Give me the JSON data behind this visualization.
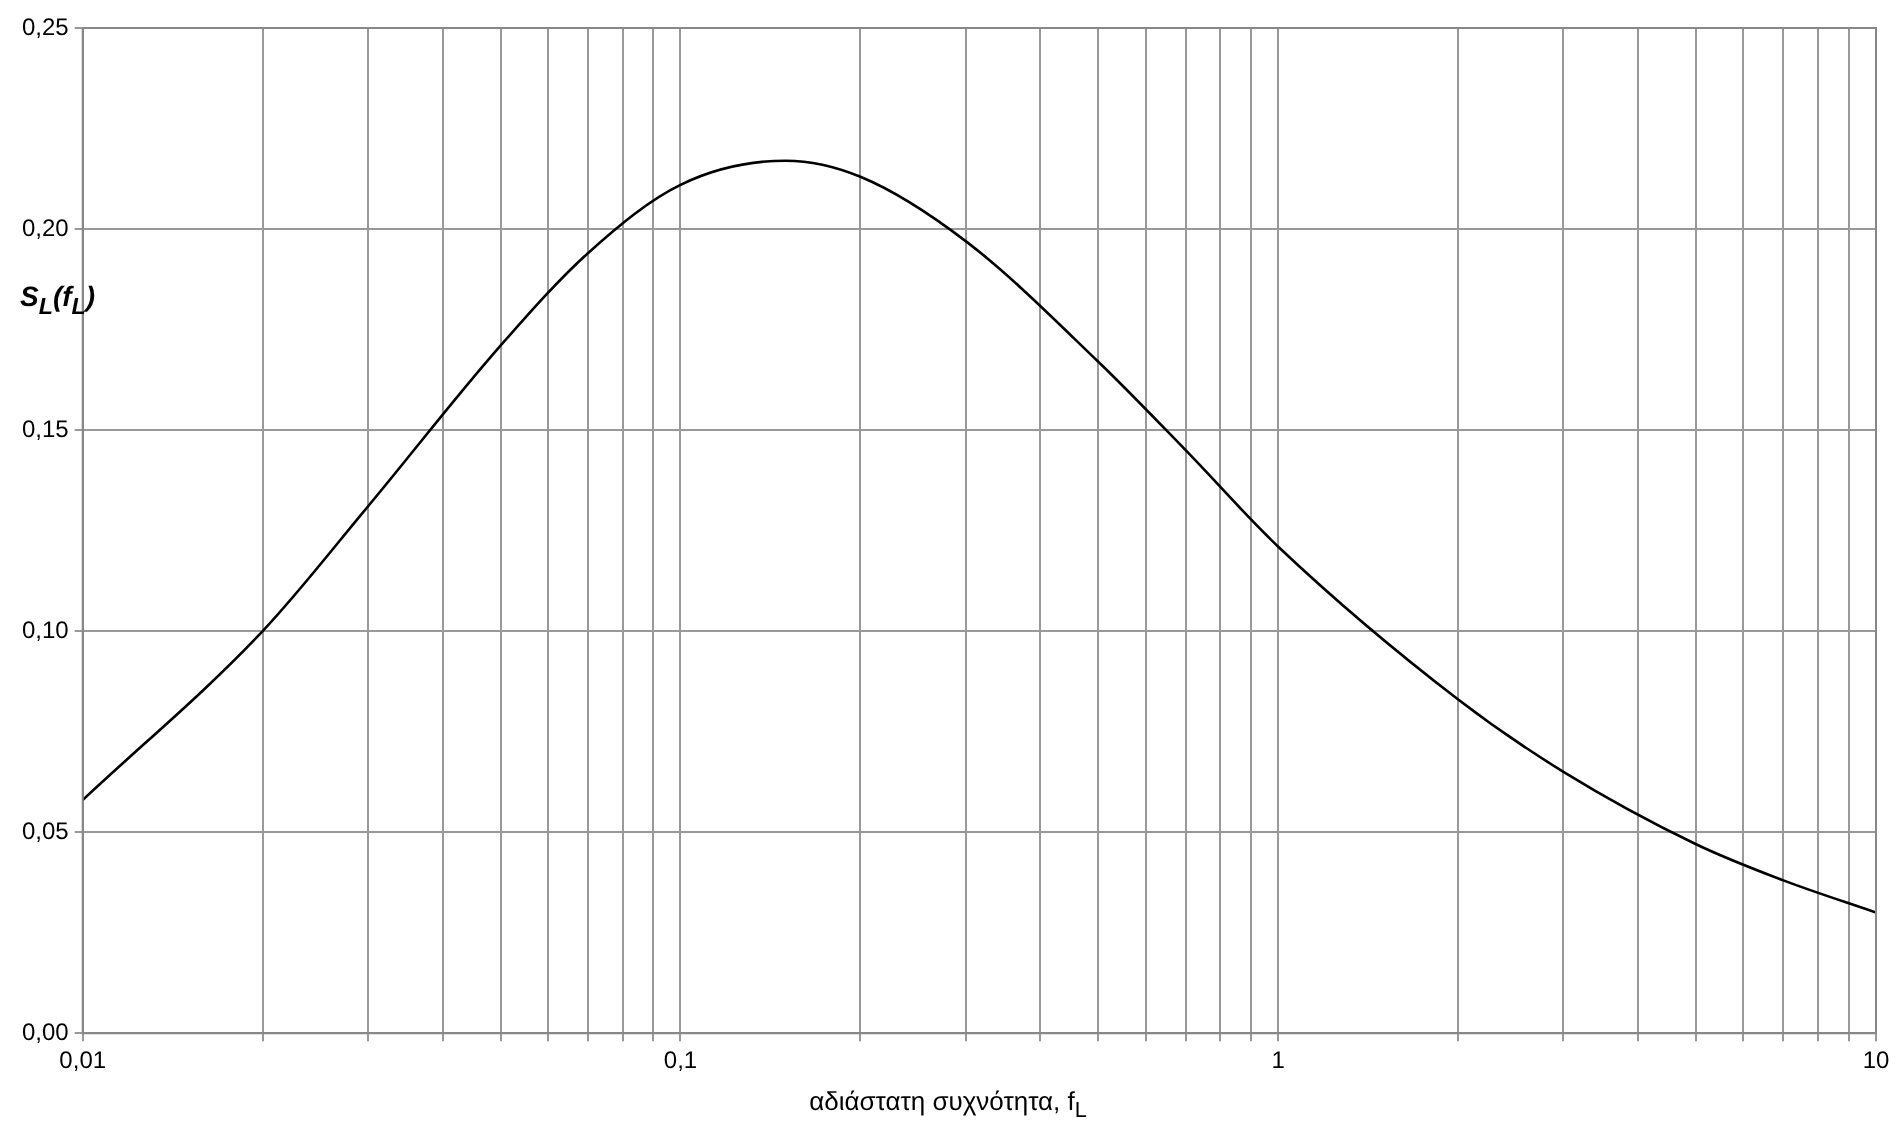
{
  "chart_data": {
    "type": "line",
    "xlabel": "αδιάστατη συχνότητα, f$_{L}$",
    "ylabel": "S$_{L}$(f$_{L}$)",
    "x": [
      0.01,
      0.02,
      0.03,
      0.05,
      0.07,
      0.1,
      0.15,
      0.2,
      0.3,
      0.5,
      0.7,
      1,
      2,
      3,
      5,
      7,
      10
    ],
    "series": [
      {
        "color": "#000000",
        "values": [
          0.058,
          0.1,
          0.131,
          0.171,
          0.194,
          0.211,
          0.217,
          0.213,
          0.197,
          0.167,
          0.145,
          0.121,
          0.083,
          0.065,
          0.047,
          0.038,
          0.03
        ]
      }
    ],
    "log": "x",
    "xlim": [
      0.01,
      10
    ],
    "xticks": [
      {
        "value": 0.01,
        "label": "0,01"
      },
      {
        "value": 0.02,
        "label": null
      },
      {
        "value": 0.03,
        "label": null
      },
      {
        "value": 0.04,
        "label": null
      },
      {
        "value": 0.05,
        "label": null
      },
      {
        "value": 0.06,
        "label": null
      },
      {
        "value": 0.07,
        "label": null
      },
      {
        "value": 0.08,
        "label": null
      },
      {
        "value": 0.09,
        "label": null
      },
      {
        "value": 0.1,
        "label": "0,1"
      },
      {
        "value": 0.2,
        "label": null
      },
      {
        "value": 0.3,
        "label": null
      },
      {
        "value": 0.4,
        "label": null
      },
      {
        "value": 0.5,
        "label": null
      },
      {
        "value": 0.6,
        "label": null
      },
      {
        "value": 0.7,
        "label": null
      },
      {
        "value": 0.8,
        "label": null
      },
      {
        "value": 0.9,
        "label": null
      },
      {
        "value": 1,
        "label": "1"
      },
      {
        "value": 2,
        "label": null
      },
      {
        "value": 3,
        "label": null
      },
      {
        "value": 4,
        "label": null
      },
      {
        "value": 5,
        "label": null
      },
      {
        "value": 6,
        "label": null
      },
      {
        "value": 7,
        "label": null
      },
      {
        "value": 8,
        "label": null
      },
      {
        "value": 9,
        "label": null
      },
      {
        "value": 10,
        "label": "10"
      }
    ],
    "ylim": [
      0,
      0.25
    ],
    "yticks": [
      {
        "value": 0,
        "label": "0,00"
      },
      {
        "value": 0.05,
        "label": "0,05"
      },
      {
        "value": 0.1,
        "label": "0,10"
      },
      {
        "value": 0.15,
        "label": "0,15"
      },
      {
        "value": 0.2,
        "label": "0,20"
      },
      {
        "value": 0.25,
        "label": "0,25"
      }
    ],
    "grid": true,
    "legend": false,
    "marker": "none",
    "line_style": "solid"
  }
}
